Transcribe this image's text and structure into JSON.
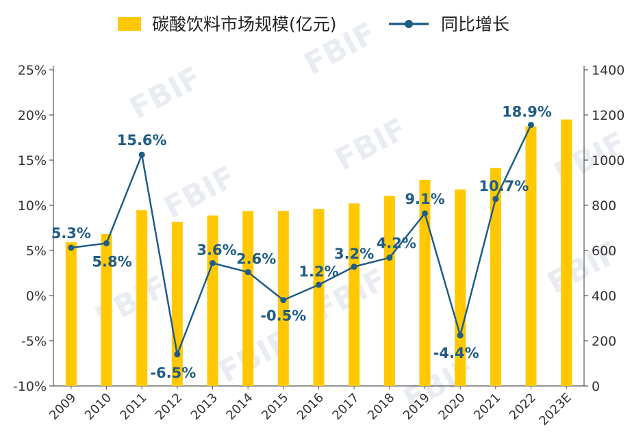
{
  "chart_data": {
    "type": "bar+line",
    "legend": {
      "bar_label": "碳酸饮料市场规模(亿元)",
      "line_label": "同比增长",
      "placement": "top-center"
    },
    "categories": [
      "2009",
      "2010",
      "2011",
      "2012",
      "2013",
      "2014",
      "2015",
      "2016",
      "2017",
      "2018",
      "2019",
      "2020",
      "2021",
      "2022",
      "2023E"
    ],
    "bar_series": {
      "name": "碳酸饮料市场规模(亿元)",
      "axis": "right",
      "color": "#FFC800",
      "values": [
        636,
        673,
        778,
        727,
        755,
        775,
        775,
        784,
        808,
        842,
        912,
        870,
        965,
        1150,
        1180
      ]
    },
    "line_series": {
      "name": "同比增长",
      "axis": "left",
      "color": "#1F5C86",
      "values": [
        5.3,
        5.8,
        15.6,
        -6.5,
        3.6,
        2.6,
        -0.5,
        1.2,
        3.2,
        4.2,
        9.1,
        -4.4,
        10.7,
        18.9,
        null
      ],
      "labels": [
        "5.3%",
        "5.8%",
        "15.6%",
        "-6.5%",
        "3.6%",
        "2.6%",
        "-0.5%",
        "1.2%",
        "3.2%",
        "4.2%",
        "9.1%",
        "-4.4%",
        "10.7%",
        "18.9%",
        ""
      ]
    },
    "y_left": {
      "ylim": [
        -10,
        25
      ],
      "ticks": [
        25,
        20,
        15,
        10,
        5,
        0,
        -5,
        -10
      ],
      "tick_labels": [
        "25%",
        "20%",
        "15%",
        "10%",
        "5%",
        "0%",
        "-5%",
        "-10%"
      ]
    },
    "y_right": {
      "ylim": [
        0,
        1400
      ],
      "ticks": [
        1400,
        1200,
        1000,
        800,
        600,
        400,
        200,
        0
      ],
      "tick_labels": [
        "1400",
        "1200",
        "1000",
        "800",
        "600",
        "400",
        "200",
        "0"
      ]
    },
    "grid": false,
    "watermark": "FBIF"
  }
}
